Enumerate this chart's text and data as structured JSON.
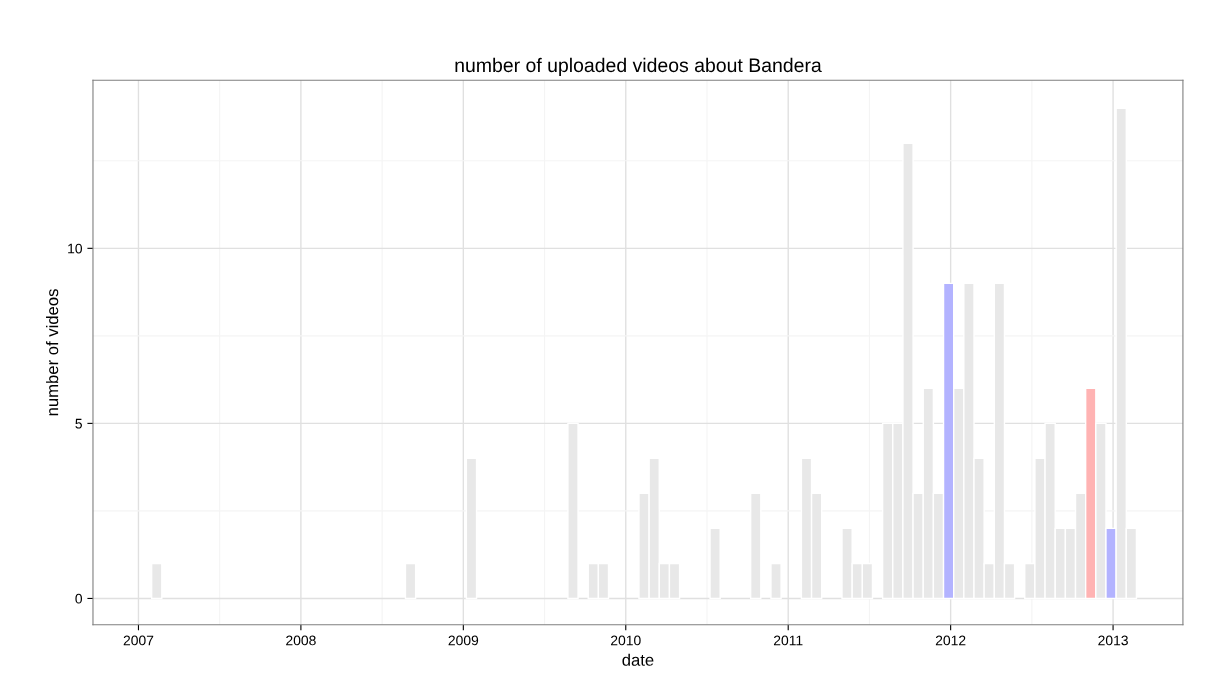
{
  "chart_data": {
    "type": "histogram",
    "title": "number of uploaded videos about Bandera",
    "xlabel": "date",
    "ylabel": "number of videos",
    "bins": [
      2007.0813,
      2007.1438,
      2007.2063,
      2007.2688,
      2007.3313,
      2007.3938,
      2007.4563,
      2007.5188,
      2007.5813,
      2007.6438,
      2007.7063,
      2007.7688,
      2007.8313,
      2007.8938,
      2007.9563,
      2008.0188,
      2008.0813,
      2008.1438,
      2008.2063,
      2008.2688,
      2008.3313,
      2008.3938,
      2008.4563,
      2008.5188,
      2008.5813,
      2008.6438,
      2008.7063,
      2008.7688,
      2008.8313,
      2008.8938,
      2008.9563,
      2009.0188,
      2009.0813,
      2009.1438,
      2009.2063,
      2009.2688,
      2009.3313,
      2009.3938,
      2009.4563,
      2009.5188,
      2009.5813,
      2009.6438,
      2009.7063,
      2009.7688,
      2009.8313,
      2009.8938,
      2009.9563,
      2010.0188,
      2010.0813,
      2010.1438,
      2010.2063,
      2010.2688,
      2010.3313,
      2010.3938,
      2010.4563,
      2010.5188,
      2010.5813,
      2010.6438,
      2010.7063,
      2010.7688,
      2010.8313,
      2010.8938,
      2010.9563,
      2011.0188,
      2011.0813,
      2011.1438,
      2011.2063,
      2011.2688,
      2011.3313,
      2011.3938,
      2011.4563,
      2011.5188,
      2011.5813,
      2011.6438,
      2011.7063,
      2011.7688,
      2011.8313,
      2011.8938,
      2011.9563,
      2012.0188,
      2012.0813,
      2012.1438,
      2012.2063,
      2012.2688,
      2012.3313,
      2012.3938,
      2012.4563,
      2012.5188,
      2012.5813,
      2012.6438,
      2012.7063,
      2012.7688,
      2012.8313,
      2012.8938,
      2012.9563,
      2013.0188,
      2013.0813,
      2013.1438
    ],
    "values": [
      1,
      0,
      0,
      0,
      0,
      0,
      0,
      0,
      0,
      0,
      0,
      0,
      0,
      0,
      0,
      0,
      0,
      0,
      0,
      0,
      0,
      0,
      0,
      0,
      0,
      1,
      0,
      0,
      0,
      0,
      0,
      4,
      0,
      0,
      0,
      0,
      0,
      0,
      0,
      0,
      0,
      5,
      0,
      1,
      1,
      0,
      0,
      0,
      3,
      4,
      1,
      1,
      0,
      0,
      0,
      2,
      0,
      0,
      0,
      3,
      0,
      1,
      0,
      0,
      4,
      3,
      0,
      0,
      2,
      1,
      1,
      0,
      5,
      5,
      13,
      3,
      6,
      3,
      9,
      6,
      9,
      4,
      1,
      9,
      1,
      0,
      1,
      4,
      5,
      2,
      2,
      3,
      6,
      5,
      2,
      14,
      2
    ],
    "colors": [
      "#e8e8e8",
      "#e8e8e8",
      "#e8e8e8",
      "#e8e8e8",
      "#e8e8e8",
      "#e8e8e8",
      "#e8e8e8",
      "#e8e8e8",
      "#e8e8e8",
      "#e8e8e8",
      "#e8e8e8",
      "#e8e8e8",
      "#e8e8e8",
      "#e8e8e8",
      "#e8e8e8",
      "#e8e8e8",
      "#e8e8e8",
      "#e8e8e8",
      "#e8e8e8",
      "#e8e8e8",
      "#e8e8e8",
      "#e8e8e8",
      "#e8e8e8",
      "#e8e8e8",
      "#e8e8e8",
      "#e8e8e8",
      "#e8e8e8",
      "#e8e8e8",
      "#e8e8e8",
      "#e8e8e8",
      "#e8e8e8",
      "#e8e8e8",
      "#e8e8e8",
      "#e8e8e8",
      "#e8e8e8",
      "#e8e8e8",
      "#e8e8e8",
      "#e8e8e8",
      "#e8e8e8",
      "#e8e8e8",
      "#e8e8e8",
      "#e8e8e8",
      "#e8e8e8",
      "#e8e8e8",
      "#e8e8e8",
      "#e8e8e8",
      "#e8e8e8",
      "#e8e8e8",
      "#e8e8e8",
      "#e8e8e8",
      "#e8e8e8",
      "#e8e8e8",
      "#e8e8e8",
      "#e8e8e8",
      "#e8e8e8",
      "#e8e8e8",
      "#e8e8e8",
      "#e8e8e8",
      "#e8e8e8",
      "#e8e8e8",
      "#e8e8e8",
      "#e8e8e8",
      "#e8e8e8",
      "#e8e8e8",
      "#e8e8e8",
      "#e8e8e8",
      "#e8e8e8",
      "#e8e8e8",
      "#e8e8e8",
      "#e8e8e8",
      "#e8e8e8",
      "#e8e8e8",
      "#e8e8e8",
      "#e8e8e8",
      "#e8e8e8",
      "#e8e8e8",
      "#e8e8e8",
      "#e8e8e8",
      "#b3b3ff",
      "#e8e8e8",
      "#e8e8e8",
      "#e8e8e8",
      "#e8e8e8",
      "#e8e8e8",
      "#e8e8e8",
      "#e8e8e8",
      "#e8e8e8",
      "#e8e8e8",
      "#e8e8e8",
      "#e8e8e8",
      "#e8e8e8",
      "#e8e8e8",
      "#ffb3b3",
      "#e8e8e8",
      "#b3b3ff",
      "#e8e8e8",
      "#e8e8e8"
    ],
    "xlim": [
      2006.72,
      2013.43
    ],
    "xticks": [
      2007,
      2008,
      2009,
      2010,
      2011,
      2012,
      2013
    ],
    "ylim": [
      -0.75,
      14.8
    ],
    "yticks": [
      0,
      5,
      10
    ],
    "grid": true
  }
}
